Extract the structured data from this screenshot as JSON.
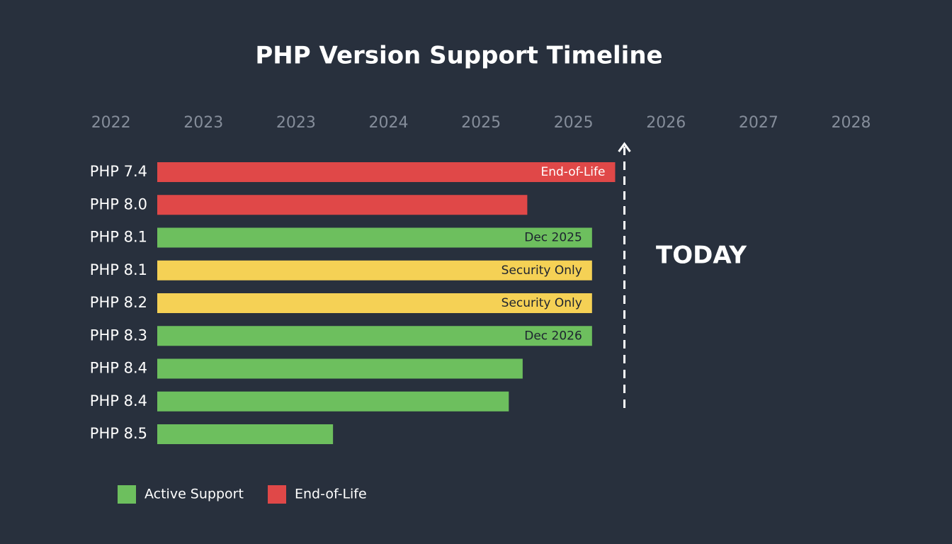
{
  "chart_data": {
    "type": "bar",
    "orientation": "horizontal",
    "title": "PHP Version Support Timeline",
    "categories": [
      "PHP 7.4",
      "PHP 8.0",
      "PHP 8.1",
      "PHP 8.1",
      "PHP 8.2",
      "PHP 8.3",
      "PHP 8.4",
      "PHP 8.4",
      "PHP 8.5"
    ],
    "values": [
      4.95,
      4.0,
      4.7,
      4.7,
      4.7,
      4.7,
      3.95,
      3.8,
      1.9
    ],
    "colors": [
      "#e04848",
      "#e04848",
      "#6dbf5e",
      "#f5d155",
      "#f5d155",
      "#6dbf5e",
      "#6dbf5e",
      "#6dbf5e",
      "#6dbf5e"
    ],
    "bar_labels": [
      "End-of-Life",
      null,
      "Dec 2025",
      "Security Only",
      "Security Only",
      "Dec 2026",
      null,
      null,
      null
    ],
    "xlim": [
      -1,
      8
    ],
    "xticks": [
      {
        "value": -0.5,
        "label": "2022"
      },
      {
        "value": 0.5,
        "label": "2023"
      },
      {
        "value": 1.5,
        "label": "2023"
      },
      {
        "value": 2.5,
        "label": "2024"
      },
      {
        "value": 3.5,
        "label": "2025"
      },
      {
        "value": 4.5,
        "label": "2025"
      },
      {
        "value": 5.5,
        "label": "2026"
      },
      {
        "value": 6.5,
        "label": "2027"
      },
      {
        "value": 7.5,
        "label": "2028"
      }
    ],
    "today": {
      "label": "TODAY",
      "value": 5.05
    },
    "legend": [
      {
        "name": "Active Support",
        "color": "#6dbf5e"
      },
      {
        "name": "End-of-Life",
        "color": "#e04848"
      }
    ]
  }
}
